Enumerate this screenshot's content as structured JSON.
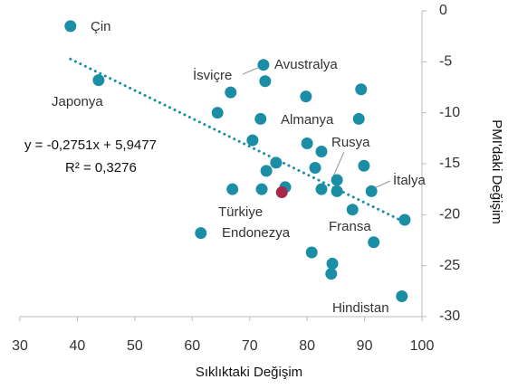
{
  "chart_data": {
    "type": "scatter",
    "x_label": "Sıklıktaki Değişim",
    "y_label": "PMI'daki Değişim",
    "xlim": [
      30,
      100
    ],
    "xticks": [
      30,
      40,
      50,
      60,
      70,
      80,
      90,
      100
    ],
    "ylim": [
      -30,
      0
    ],
    "yticks": [
      0,
      -5,
      -10,
      -15,
      -20,
      -25,
      -30
    ],
    "color": "#1b8ea6",
    "highlight_index": 21,
    "highlight_color": "#a8274a",
    "x": [
      38.8,
      43.7,
      72.4,
      72.7,
      66.7,
      79.8,
      89.4,
      64.4,
      71.9,
      89.0,
      70.5,
      80.0,
      82.5,
      74.6,
      72.9,
      81.4,
      89.9,
      85.2,
      67.0,
      72.1,
      76.2,
      75.6,
      82.5,
      85.2,
      91.2,
      87.9,
      97.0,
      61.5,
      91.6,
      80.8,
      84.4,
      84.2,
      96.5
    ],
    "values": [
      -1.5,
      -6.8,
      -5.3,
      -6.9,
      -8.0,
      -8.4,
      -7.7,
      -10.0,
      -10.6,
      -10.6,
      -12.7,
      -13.0,
      -13.8,
      -14.9,
      -15.7,
      -15.4,
      -15.2,
      -16.6,
      -17.5,
      -17.5,
      -17.3,
      -17.8,
      -17.5,
      -17.7,
      -17.7,
      -19.5,
      -20.5,
      -21.8,
      -22.7,
      -23.7,
      -24.8,
      -25.8,
      -28.0
    ],
    "trendline": {
      "slope": -0.2751,
      "intercept": 5.9477,
      "equation": "y = -0,2751x + 5,9477",
      "r2": 0.3276,
      "r2_label": "R² = 0,3276"
    },
    "annotations": [
      "Çin",
      "Avustralya",
      "İsviçre",
      "Japonya",
      "Almanya",
      "Rusya",
      "İtalya",
      "Türkiye",
      "Endonezya",
      "Fransa",
      "Hindistan"
    ]
  }
}
